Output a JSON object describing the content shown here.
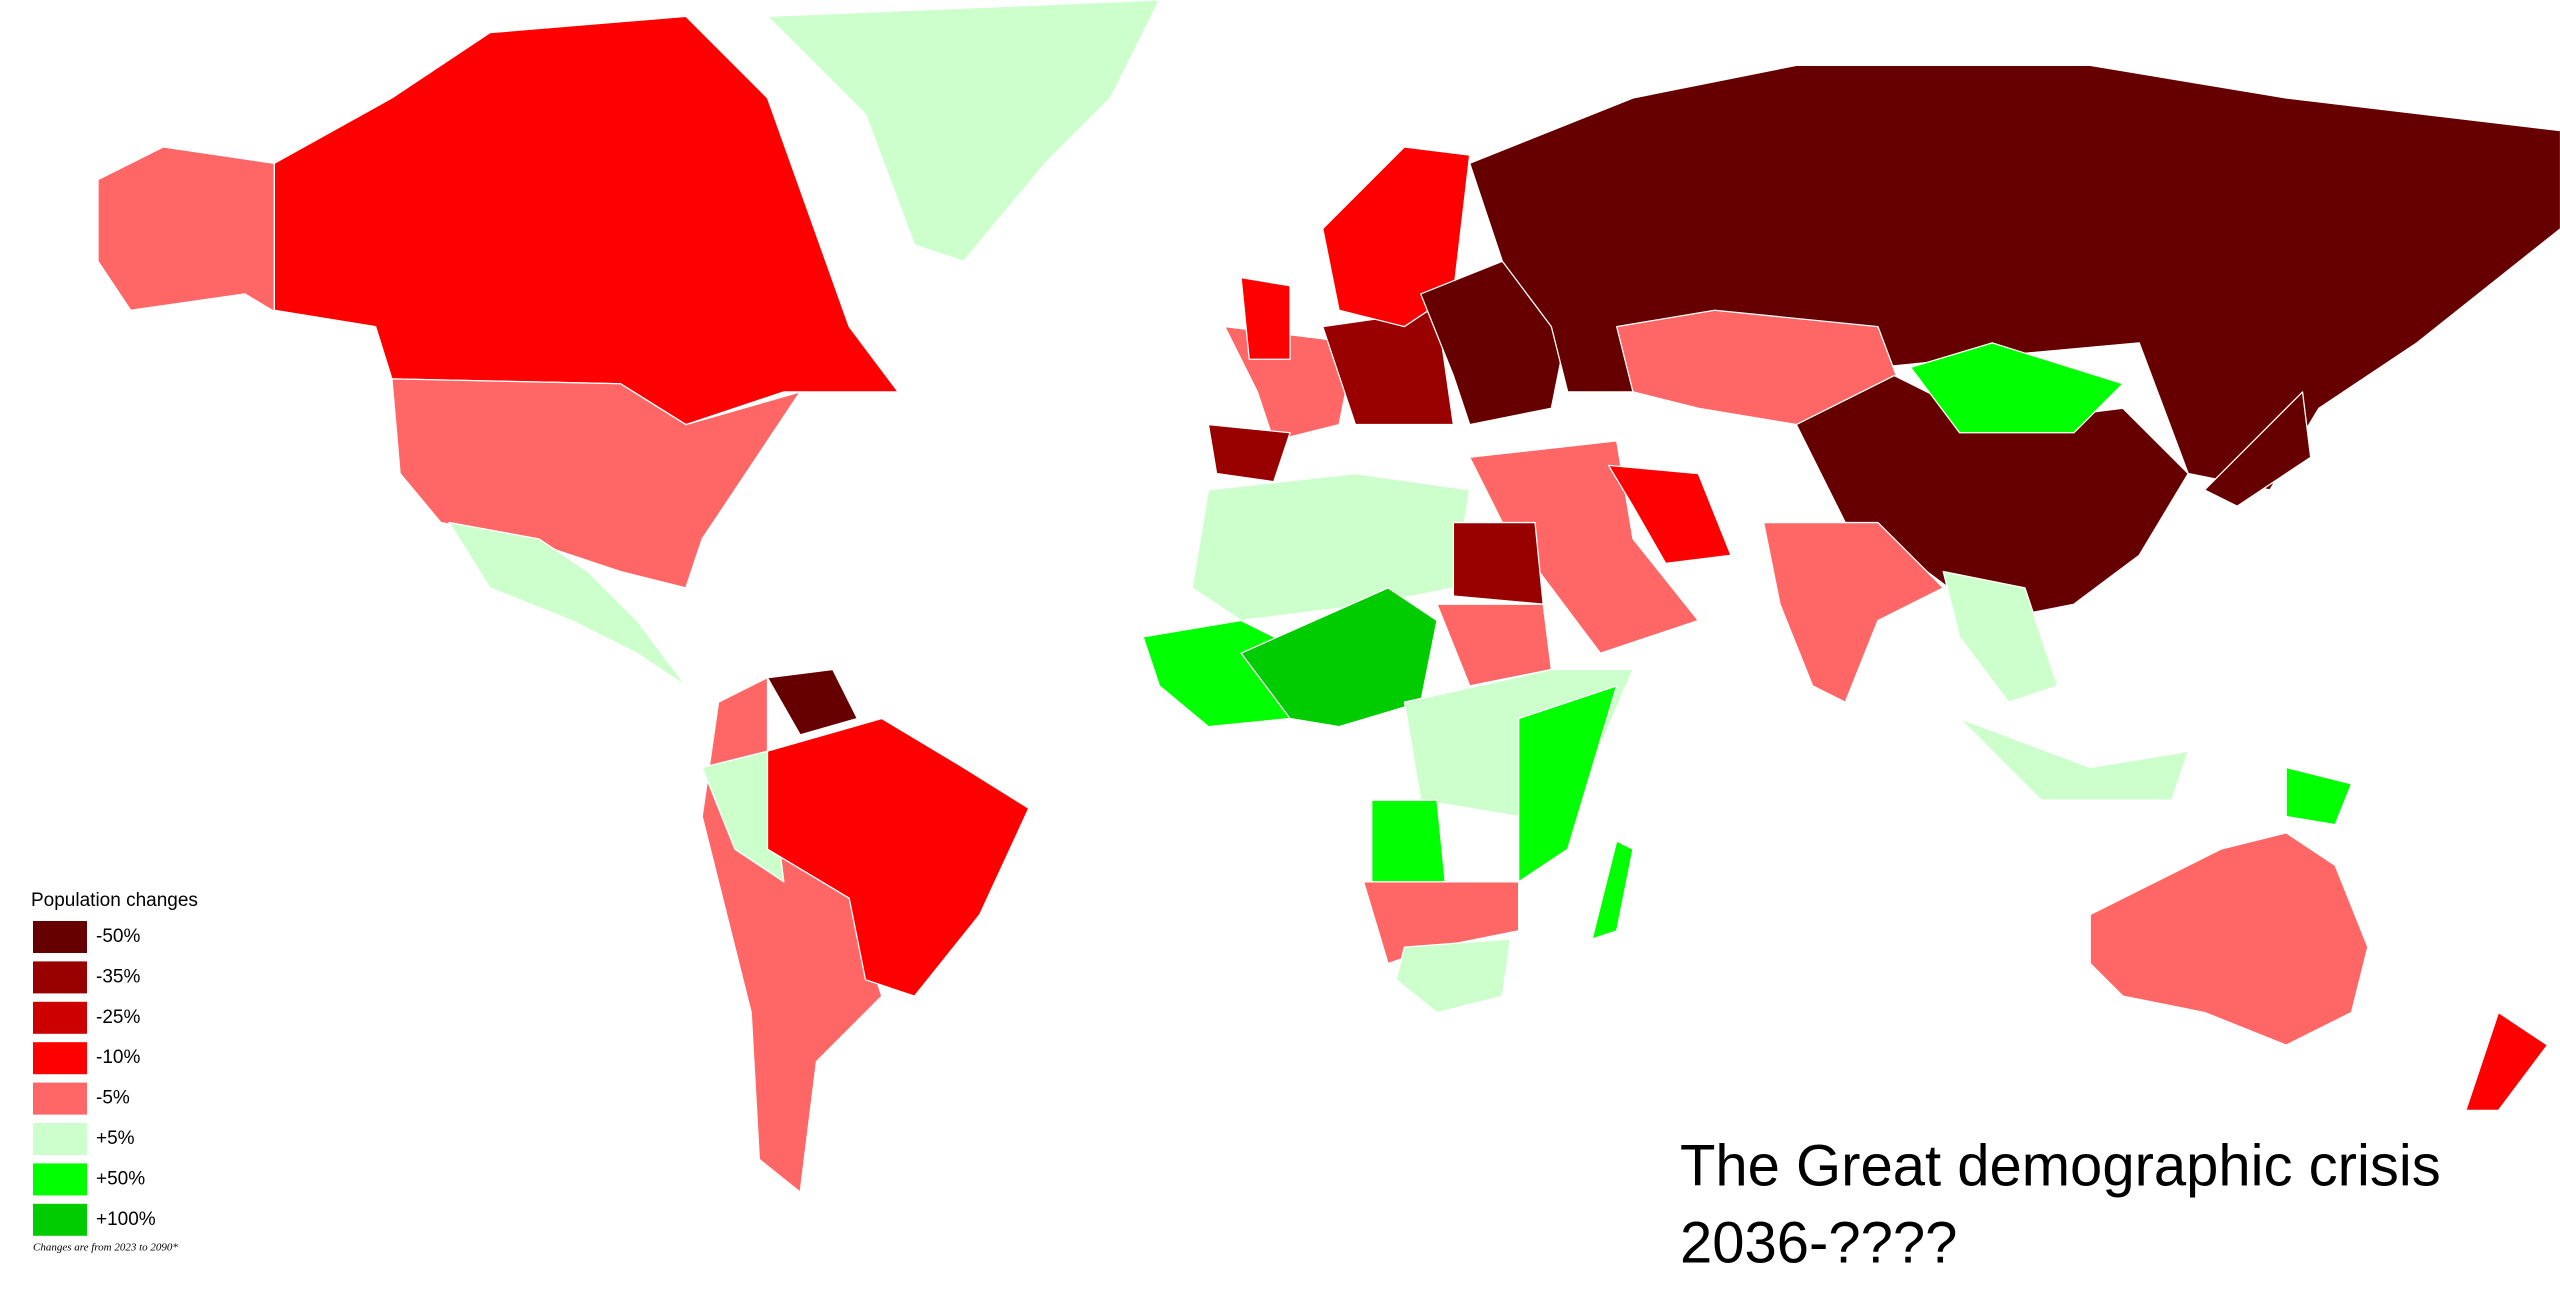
{
  "title_lines": [
    "The Great demographic crisis",
    "2036-????"
  ],
  "legend": {
    "title": "Population changes",
    "items": [
      {
        "label": "-50%",
        "color": "#660000"
      },
      {
        "label": "-35%",
        "color": "#990000"
      },
      {
        "label": "-25%",
        "color": "#cc0000"
      },
      {
        "label": "-10%",
        "color": "#ff0000"
      },
      {
        "label": "-5%",
        "color": "#ff6666"
      },
      {
        "label": "+5%",
        "color": "#ccffcc"
      },
      {
        "label": "+50%",
        "color": "#00ff00"
      },
      {
        "label": "+100%",
        "color": "#00cc00"
      }
    ]
  },
  "footnote": "Changes are from 2023 to 2090*"
}
